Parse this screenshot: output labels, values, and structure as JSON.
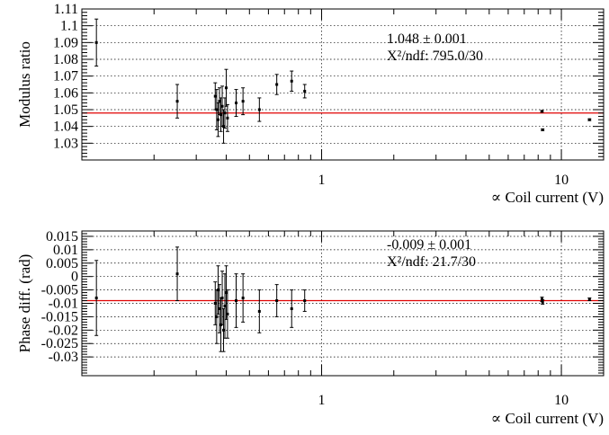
{
  "chart_data": [
    {
      "type": "scatter",
      "ylabel": "Modulus ratio",
      "xlabel": "∝ Coil current (V)",
      "x_scale": "log",
      "xlim": [
        0.1,
        15
      ],
      "ylim": [
        1.02,
        1.11
      ],
      "x_tick_labels": [
        {
          "value": 1,
          "label": "1"
        },
        {
          "value": 10,
          "label": "10"
        }
      ],
      "y_tick_labels": [
        {
          "value": 1.03,
          "label": "1.03"
        },
        {
          "value": 1.04,
          "label": "1.04"
        },
        {
          "value": 1.05,
          "label": "1.05"
        },
        {
          "value": 1.06,
          "label": "1.06"
        },
        {
          "value": 1.07,
          "label": "1.07"
        },
        {
          "value": 1.08,
          "label": "1.08"
        },
        {
          "value": 1.09,
          "label": "1.09"
        },
        {
          "value": 1.1,
          "label": "1.1"
        },
        {
          "value": 1.11,
          "label": "1.11"
        }
      ],
      "grid": true,
      "fit": {
        "value": 1.048,
        "color": "#e00000"
      },
      "annotations": [
        "1.048 ± 0.001",
        "X²/ndf: 795.0/30"
      ],
      "points": [
        {
          "x": 0.115,
          "y": 1.09,
          "err": 0.014
        },
        {
          "x": 0.25,
          "y": 1.055,
          "err": 0.01
        },
        {
          "x": 0.36,
          "y": 1.058,
          "err": 0.008
        },
        {
          "x": 0.365,
          "y": 1.05,
          "err": 0.012
        },
        {
          "x": 0.37,
          "y": 1.044,
          "err": 0.01
        },
        {
          "x": 0.375,
          "y": 1.055,
          "err": 0.008
        },
        {
          "x": 0.38,
          "y": 1.047,
          "err": 0.01
        },
        {
          "x": 0.385,
          "y": 1.052,
          "err": 0.012
        },
        {
          "x": 0.39,
          "y": 1.04,
          "err": 0.01
        },
        {
          "x": 0.395,
          "y": 1.048,
          "err": 0.009
        },
        {
          "x": 0.4,
          "y": 1.063,
          "err": 0.011
        },
        {
          "x": 0.405,
          "y": 1.045,
          "err": 0.008
        },
        {
          "x": 0.44,
          "y": 1.054,
          "err": 0.008
        },
        {
          "x": 0.47,
          "y": 1.055,
          "err": 0.008
        },
        {
          "x": 0.55,
          "y": 1.05,
          "err": 0.007
        },
        {
          "x": 0.65,
          "y": 1.065,
          "err": 0.006
        },
        {
          "x": 0.75,
          "y": 1.067,
          "err": 0.006
        },
        {
          "x": 0.85,
          "y": 1.061,
          "err": 0.004
        },
        {
          "x": 8.3,
          "y": 1.049,
          "err": 0.0005
        },
        {
          "x": 8.35,
          "y": 1.038,
          "err": 0.0005
        },
        {
          "x": 13.1,
          "y": 1.044,
          "err": 0.0005
        }
      ]
    },
    {
      "type": "scatter",
      "ylabel": "Phase diff. (rad)",
      "xlabel": "∝ Coil current (V)",
      "x_scale": "log",
      "xlim": [
        0.1,
        15
      ],
      "ylim": [
        -0.037,
        0.017
      ],
      "x_tick_labels": [
        {
          "value": 1,
          "label": "1"
        },
        {
          "value": 10,
          "label": "10"
        }
      ],
      "y_tick_labels": [
        {
          "value": 0.015,
          "label": "0.015"
        },
        {
          "value": 0.01,
          "label": "0.01"
        },
        {
          "value": 0.005,
          "label": "0.005"
        },
        {
          "value": 0,
          "label": "0"
        },
        {
          "value": -0.005,
          "label": "-0.005"
        },
        {
          "value": -0.01,
          "label": "-0.01"
        },
        {
          "value": -0.015,
          "label": "-0.015"
        },
        {
          "value": -0.02,
          "label": "-0.02"
        },
        {
          "value": -0.025,
          "label": "-0.025"
        },
        {
          "value": -0.03,
          "label": "-0.03"
        }
      ],
      "grid": true,
      "fit": {
        "value": -0.009,
        "color": "#e00000"
      },
      "annotations": [
        "-0.009 ± 0.001",
        "X²/ndf: 21.7/30"
      ],
      "points": [
        {
          "x": 0.115,
          "y": -0.008,
          "err": 0.014
        },
        {
          "x": 0.25,
          "y": 0.001,
          "err": 0.01
        },
        {
          "x": 0.36,
          "y": -0.01,
          "err": 0.008
        },
        {
          "x": 0.365,
          "y": -0.015,
          "err": 0.01
        },
        {
          "x": 0.37,
          "y": -0.005,
          "err": 0.009
        },
        {
          "x": 0.375,
          "y": -0.012,
          "err": 0.009
        },
        {
          "x": 0.38,
          "y": -0.018,
          "err": 0.01
        },
        {
          "x": 0.385,
          "y": -0.008,
          "err": 0.01
        },
        {
          "x": 0.39,
          "y": -0.02,
          "err": 0.008
        },
        {
          "x": 0.395,
          "y": -0.011,
          "err": 0.012
        },
        {
          "x": 0.4,
          "y": -0.006,
          "err": 0.01
        },
        {
          "x": 0.405,
          "y": -0.014,
          "err": 0.009
        },
        {
          "x": 0.44,
          "y": -0.009,
          "err": 0.01
        },
        {
          "x": 0.47,
          "y": -0.008,
          "err": 0.009
        },
        {
          "x": 0.55,
          "y": -0.013,
          "err": 0.008
        },
        {
          "x": 0.65,
          "y": -0.009,
          "err": 0.006
        },
        {
          "x": 0.75,
          "y": -0.012,
          "err": 0.007
        },
        {
          "x": 0.85,
          "y": -0.009,
          "err": 0.004
        },
        {
          "x": 8.3,
          "y": -0.0085,
          "err": 0.0008
        },
        {
          "x": 8.35,
          "y": -0.0095,
          "err": 0.0008
        },
        {
          "x": 13.1,
          "y": -0.0085,
          "err": 0.0005
        }
      ]
    }
  ]
}
